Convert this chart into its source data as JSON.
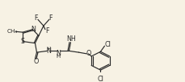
{
  "background_color": "#f7f2e4",
  "line_color": "#2a2a2a",
  "figsize": [
    2.29,
    1.02
  ],
  "dpi": 100,
  "xlim": [
    0,
    229
  ],
  "ylim": [
    0,
    102
  ]
}
